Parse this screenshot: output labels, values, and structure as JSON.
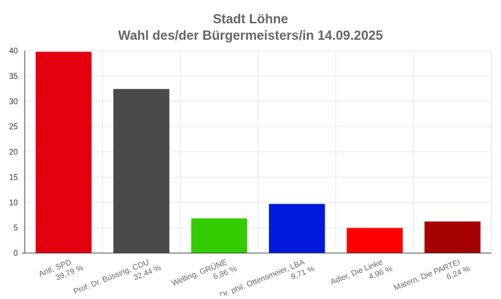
{
  "chart_data": {
    "type": "bar",
    "title": "Stadt Löhne",
    "subtitle": "Wahl des/der Bürgermeisters/in 14.09.2025",
    "xlabel": "",
    "ylabel": "",
    "ylim": [
      0,
      40
    ],
    "yticks": [
      0,
      5,
      10,
      15,
      20,
      25,
      30,
      35,
      40
    ],
    "grid": true,
    "categories": [
      {
        "name": "Antl, SPD",
        "label": "39,79 %"
      },
      {
        "name": "Prof. Dr. Büssing, CDU",
        "label": "32,44 %"
      },
      {
        "name": "Welling, GRÜNE",
        "label": "6,86 %"
      },
      {
        "name": "Dr. phil. Ottensmeier, LBA",
        "label": "9,71 %"
      },
      {
        "name": "Adler, Die Linke",
        "label": "4,96 %"
      },
      {
        "name": "Matern, Die PARTEI",
        "label": "6,24 %"
      }
    ],
    "values": [
      39.79,
      32.44,
      6.86,
      9.71,
      4.96,
      6.24
    ],
    "colors": [
      "#e3000f",
      "#4a4a4a",
      "#33cc00",
      "#0019dc",
      "#ff0000",
      "#a50000"
    ]
  }
}
